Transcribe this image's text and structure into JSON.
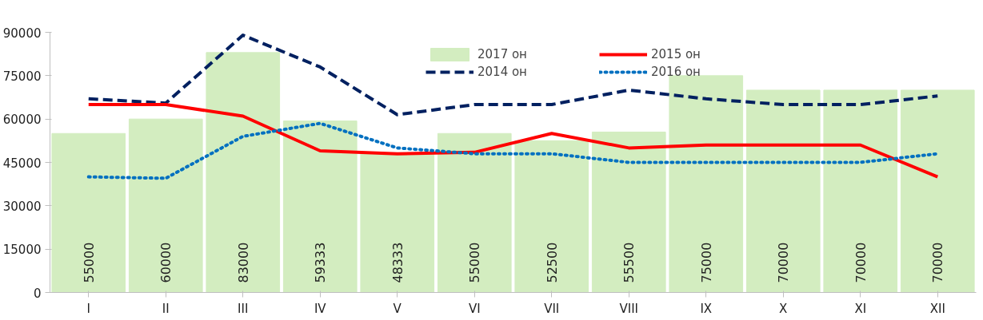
{
  "chart_data": {
    "type": "bar",
    "categories": [
      "I",
      "II",
      "III",
      "IV",
      "V",
      "VI",
      "VII",
      "VIII",
      "IX",
      "X",
      "XI",
      "XII"
    ],
    "ylim": [
      0,
      90000
    ],
    "yticks": [
      0,
      15000,
      30000,
      45000,
      60000,
      75000,
      90000
    ],
    "grid": false,
    "legend": "top",
    "series": [
      {
        "name": "2017 он",
        "color": "#d3edc0",
        "data_labels": true,
        "values": [
          55000,
          60000,
          83000,
          59333,
          48333,
          55000,
          52500,
          55500,
          75000,
          70000,
          70000,
          70000
        ]
      },
      {
        "name": "2014 он",
        "type": "line",
        "line_style": "dashed",
        "color": "#002060",
        "values": [
          67000,
          65500,
          89000,
          78000,
          61500,
          65000,
          65000,
          70000,
          67000,
          65000,
          65000,
          68000
        ]
      },
      {
        "name": "2015 он",
        "type": "line",
        "line_style": "solid",
        "color": "#ff0000",
        "values": [
          65000,
          65000,
          61000,
          49000,
          48000,
          48500,
          55000,
          50000,
          51000,
          51000,
          51000,
          40000
        ]
      },
      {
        "name": "2016 он",
        "type": "line",
        "line_style": "dotted",
        "color": "#0070c0",
        "values": [
          40000,
          39500,
          54000,
          58500,
          50000,
          48000,
          48000,
          45000,
          45000,
          45000,
          45000,
          48000
        ]
      }
    ]
  }
}
